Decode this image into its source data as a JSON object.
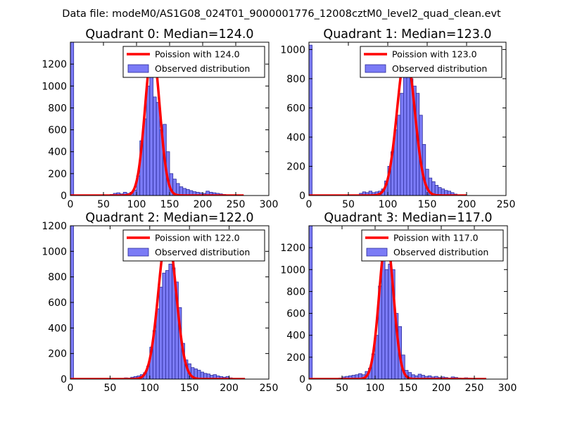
{
  "suptitle": "Data file: modeM0/AS1G08_024T01_9000001776_12008cztM0_level2_quad_clean.evt",
  "colors": {
    "hist_fill": "#7b7bf6",
    "hist_edge": "#2a2a9a",
    "fit_line": "#ff0000",
    "axes": "#000000"
  },
  "chart_data": [
    {
      "type": "bar",
      "title": "Quadrant 0: Median=124.0",
      "xlim": [
        0,
        300
      ],
      "ylim": [
        0,
        1400
      ],
      "xticks": [
        0,
        50,
        100,
        150,
        200,
        250,
        300
      ],
      "yticks": [
        0,
        200,
        400,
        600,
        800,
        1000,
        1200
      ],
      "bin_width": 5,
      "bins": [
        [
          0,
          1400
        ],
        [
          60,
          10
        ],
        [
          65,
          20
        ],
        [
          70,
          25
        ],
        [
          75,
          15
        ],
        [
          80,
          30
        ],
        [
          85,
          20
        ],
        [
          90,
          30
        ],
        [
          95,
          50
        ],
        [
          100,
          180
        ],
        [
          105,
          500
        ],
        [
          110,
          700
        ],
        [
          115,
          1000
        ],
        [
          120,
          1100
        ],
        [
          125,
          900
        ],
        [
          130,
          850
        ],
        [
          135,
          600
        ],
        [
          140,
          650
        ],
        [
          145,
          400
        ],
        [
          150,
          200
        ],
        [
          155,
          150
        ],
        [
          160,
          110
        ],
        [
          165,
          80
        ],
        [
          170,
          65
        ],
        [
          175,
          55
        ],
        [
          180,
          45
        ],
        [
          185,
          35
        ],
        [
          190,
          30
        ],
        [
          195,
          25
        ],
        [
          200,
          20
        ],
        [
          205,
          40
        ],
        [
          210,
          30
        ],
        [
          215,
          25
        ],
        [
          220,
          20
        ],
        [
          225,
          15
        ],
        [
          230,
          10
        ]
      ],
      "fit": {
        "mean": 124.0,
        "peak": 1330,
        "sigma": 11.1,
        "x_range": [
          0,
          262
        ]
      },
      "legend": [
        "Poission with 124.0",
        "Observed distribution"
      ]
    },
    {
      "type": "bar",
      "title": "Quadrant 1: Median=123.0",
      "xlim": [
        0,
        250
      ],
      "ylim": [
        0,
        1050
      ],
      "xticks": [
        0,
        50,
        100,
        150,
        200,
        250
      ],
      "yticks": [
        0,
        200,
        400,
        600,
        800,
        1000
      ],
      "bin_width": 4,
      "bins": [
        [
          0,
          1030
        ],
        [
          64,
          15
        ],
        [
          68,
          25
        ],
        [
          72,
          20
        ],
        [
          76,
          30
        ],
        [
          80,
          20
        ],
        [
          84,
          25
        ],
        [
          88,
          30
        ],
        [
          92,
          45
        ],
        [
          96,
          100
        ],
        [
          100,
          200
        ],
        [
          104,
          300
        ],
        [
          108,
          450
        ],
        [
          112,
          550
        ],
        [
          116,
          700
        ],
        [
          120,
          900
        ],
        [
          124,
          950
        ],
        [
          128,
          800
        ],
        [
          132,
          750
        ],
        [
          136,
          700
        ],
        [
          140,
          550
        ],
        [
          144,
          350
        ],
        [
          148,
          180
        ],
        [
          152,
          120
        ],
        [
          156,
          95
        ],
        [
          160,
          70
        ],
        [
          164,
          55
        ],
        [
          168,
          45
        ],
        [
          172,
          35
        ],
        [
          176,
          30
        ],
        [
          180,
          20
        ],
        [
          184,
          10
        ]
      ],
      "fit": {
        "mean": 123.0,
        "peak": 975,
        "sigma": 11.1,
        "x_range": [
          0,
          200
        ]
      },
      "legend": [
        "Poission with 123.0",
        "Observed distribution"
      ]
    },
    {
      "type": "bar",
      "title": "Quadrant 2: Median=122.0",
      "xlim": [
        0,
        250
      ],
      "ylim": [
        0,
        1200
      ],
      "xticks": [
        0,
        50,
        100,
        150,
        200,
        250
      ],
      "yticks": [
        0,
        200,
        400,
        600,
        800,
        1000,
        1200
      ],
      "bin_width": 4,
      "bins": [
        [
          0,
          1200
        ],
        [
          64,
          5
        ],
        [
          68,
          10
        ],
        [
          72,
          8
        ],
        [
          76,
          15
        ],
        [
          80,
          20
        ],
        [
          84,
          25
        ],
        [
          88,
          35
        ],
        [
          92,
          50
        ],
        [
          96,
          100
        ],
        [
          100,
          250
        ],
        [
          104,
          380
        ],
        [
          108,
          550
        ],
        [
          112,
          720
        ],
        [
          116,
          830
        ],
        [
          120,
          850
        ],
        [
          124,
          900
        ],
        [
          128,
          870
        ],
        [
          132,
          760
        ],
        [
          136,
          560
        ],
        [
          140,
          280
        ],
        [
          144,
          150
        ],
        [
          148,
          120
        ],
        [
          152,
          90
        ],
        [
          156,
          80
        ],
        [
          160,
          70
        ],
        [
          164,
          55
        ],
        [
          168,
          45
        ],
        [
          172,
          40
        ],
        [
          176,
          30
        ],
        [
          180,
          35
        ],
        [
          184,
          25
        ],
        [
          188,
          20
        ],
        [
          192,
          15
        ],
        [
          196,
          20
        ],
        [
          200,
          10
        ]
      ],
      "fit": {
        "mean": 122.0,
        "peak": 1150,
        "sigma": 11.0,
        "x_range": [
          0,
          220
        ]
      },
      "legend": [
        "Poission with 122.0",
        "Observed distribution"
      ]
    },
    {
      "type": "bar",
      "title": "Quadrant 3: Median=117.0",
      "xlim": [
        0,
        300
      ],
      "ylim": [
        0,
        1400
      ],
      "xticks": [
        0,
        50,
        100,
        150,
        200,
        250,
        300
      ],
      "yticks": [
        0,
        200,
        400,
        600,
        800,
        1000,
        1200
      ],
      "bin_width": 5,
      "bins": [
        [
          0,
          1400
        ],
        [
          45,
          10
        ],
        [
          50,
          20
        ],
        [
          55,
          25
        ],
        [
          60,
          30
        ],
        [
          65,
          35
        ],
        [
          70,
          40
        ],
        [
          75,
          50
        ],
        [
          80,
          40
        ],
        [
          85,
          70
        ],
        [
          90,
          100
        ],
        [
          95,
          230
        ],
        [
          100,
          400
        ],
        [
          105,
          850
        ],
        [
          110,
          1200
        ],
        [
          115,
          1000
        ],
        [
          120,
          1050
        ],
        [
          125,
          1000
        ],
        [
          130,
          600
        ],
        [
          135,
          480
        ],
        [
          140,
          220
        ],
        [
          145,
          80
        ],
        [
          150,
          60
        ],
        [
          155,
          40
        ],
        [
          160,
          30
        ],
        [
          165,
          45
        ],
        [
          170,
          35
        ],
        [
          175,
          25
        ],
        [
          180,
          30
        ],
        [
          185,
          20
        ],
        [
          190,
          25
        ],
        [
          195,
          15
        ],
        [
          200,
          20
        ],
        [
          205,
          15
        ],
        [
          210,
          10
        ],
        [
          215,
          20
        ],
        [
          220,
          15
        ],
        [
          225,
          10
        ],
        [
          230,
          8
        ],
        [
          235,
          12
        ],
        [
          240,
          8
        ],
        [
          245,
          5
        ]
      ],
      "fit": {
        "mean": 117.0,
        "peak": 1290,
        "sigma": 10.8,
        "x_range": [
          0,
          268
        ]
      },
      "legend": [
        "Poission with 117.0",
        "Observed distribution"
      ]
    }
  ]
}
